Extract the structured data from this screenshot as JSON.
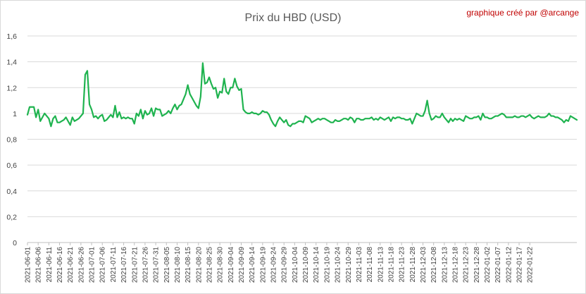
{
  "credit_text": "graphique créé par @arcange",
  "colors": {
    "series": "#1fb34f",
    "credit": "#c00000",
    "grid": "#d9d9d9",
    "title": "#595959"
  },
  "chart_data": {
    "type": "line",
    "title": "Prix du HBD (USD)",
    "xlabel": "",
    "ylabel": "",
    "ylim": [
      0,
      1.6
    ],
    "yticks": [
      0,
      0.2,
      0.4,
      0.6,
      0.8,
      1,
      1.2,
      1.4,
      1.6
    ],
    "ytick_labels": [
      "0",
      "0,2",
      "0,4",
      "0,6",
      "0,8",
      "1",
      "1,2",
      "1,4",
      "1,6"
    ],
    "grid": true,
    "legend": "none",
    "x_start": "2021-06-01",
    "x_tick_step_days": 5,
    "x_tick_labels": [
      "2021-06-01",
      "2021-06-06",
      "2021-06-11",
      "2021-06-16",
      "2021-06-21",
      "2021-06-26",
      "2021-07-01",
      "2021-07-06",
      "2021-07-11",
      "2021-07-16",
      "2021-07-21",
      "2021-07-26",
      "2021-07-31",
      "2021-08-05",
      "2021-08-10",
      "2021-08-15",
      "2021-08-20",
      "2021-08-25",
      "2021-08-30",
      "2021-09-04",
      "2021-09-09",
      "2021-09-14",
      "2021-09-19",
      "2021-09-24",
      "2021-09-29",
      "2021-10-04",
      "2021-10-09",
      "2021-10-14",
      "2021-10-19",
      "2021-10-24",
      "2021-10-29",
      "2021-11-03",
      "2021-11-08",
      "2021-11-13",
      "2021-11-18",
      "2021-11-23",
      "2021-11-28",
      "2021-12-03",
      "2021-12-08",
      "2021-12-13",
      "2021-12-18",
      "2021-12-23",
      "2021-12-28",
      "2022-01-02",
      "2022-01-07",
      "2022-01-12",
      "2022-01-17",
      "2022-01-22"
    ],
    "series": [
      {
        "color": "#1fb34f",
        "values": [
          0.99,
          1.05,
          1.05,
          1.05,
          0.97,
          1.03,
          0.94,
          0.97,
          1.0,
          0.98,
          0.96,
          0.9,
          0.96,
          0.98,
          0.93,
          0.93,
          0.94,
          0.95,
          0.97,
          0.94,
          0.91,
          0.97,
          0.94,
          0.95,
          0.96,
          0.98,
          1.0,
          1.3,
          1.33,
          1.07,
          1.03,
          0.97,
          0.98,
          0.96,
          0.98,
          0.99,
          0.94,
          0.95,
          0.97,
          0.99,
          0.97,
          1.06,
          0.97,
          1.01,
          0.96,
          0.97,
          0.96,
          0.97,
          0.96,
          0.96,
          0.92,
          1.0,
          0.98,
          1.03,
          0.96,
          1.02,
          0.99,
          1.0,
          1.04,
          0.98,
          1.04,
          1.03,
          1.03,
          0.98,
          0.99,
          1.0,
          1.02,
          1.0,
          1.04,
          1.07,
          1.03,
          1.06,
          1.07,
          1.11,
          1.15,
          1.22,
          1.15,
          1.12,
          1.09,
          1.06,
          1.04,
          1.13,
          1.39,
          1.23,
          1.24,
          1.28,
          1.23,
          1.19,
          1.2,
          1.12,
          1.17,
          1.16,
          1.27,
          1.17,
          1.15,
          1.2,
          1.2,
          1.27,
          1.21,
          1.18,
          1.19,
          1.03,
          1.01,
          1.0,
          1.0,
          1.01,
          1.0,
          1.0,
          0.99,
          1.0,
          1.02,
          1.01,
          1.01,
          0.99,
          0.95,
          0.92,
          0.9,
          0.94,
          0.97,
          0.95,
          0.93,
          0.95,
          0.91,
          0.9,
          0.92,
          0.92,
          0.93,
          0.94,
          0.94,
          0.93,
          0.98,
          0.97,
          0.96,
          0.93,
          0.94,
          0.95,
          0.96,
          0.95,
          0.96,
          0.96,
          0.95,
          0.94,
          0.93,
          0.93,
          0.95,
          0.94,
          0.94,
          0.95,
          0.96,
          0.96,
          0.95,
          0.97,
          0.96,
          0.93,
          0.96,
          0.96,
          0.95,
          0.95,
          0.96,
          0.96,
          0.96,
          0.97,
          0.95,
          0.96,
          0.95,
          0.97,
          0.96,
          0.95,
          0.96,
          0.97,
          0.94,
          0.97,
          0.96,
          0.97,
          0.97,
          0.96,
          0.96,
          0.95,
          0.95,
          0.96,
          0.92,
          0.96,
          1.0,
          0.99,
          0.98,
          0.98,
          1.02,
          1.1,
          1.0,
          0.95,
          0.96,
          0.98,
          0.97,
          0.97,
          1.0,
          0.97,
          0.95,
          0.93,
          0.96,
          0.94,
          0.96,
          0.95,
          0.96,
          0.95,
          0.94,
          0.98,
          0.97,
          0.96,
          0.96,
          0.97,
          0.97,
          0.98,
          0.95,
          1.0,
          0.97,
          0.97,
          0.96,
          0.96,
          0.97,
          0.98,
          0.98,
          0.99,
          1.0,
          0.99,
          0.97,
          0.97,
          0.97,
          0.97,
          0.98,
          0.97,
          0.97,
          0.98,
          0.98,
          0.97,
          0.98,
          0.99,
          0.97,
          0.96,
          0.97,
          0.98,
          0.97,
          0.97,
          0.97,
          0.98,
          1.0,
          0.98,
          0.98,
          0.97,
          0.97,
          0.96,
          0.95,
          0.93,
          0.95,
          0.94,
          0.98,
          0.97,
          0.96,
          0.95
        ]
      }
    ]
  }
}
